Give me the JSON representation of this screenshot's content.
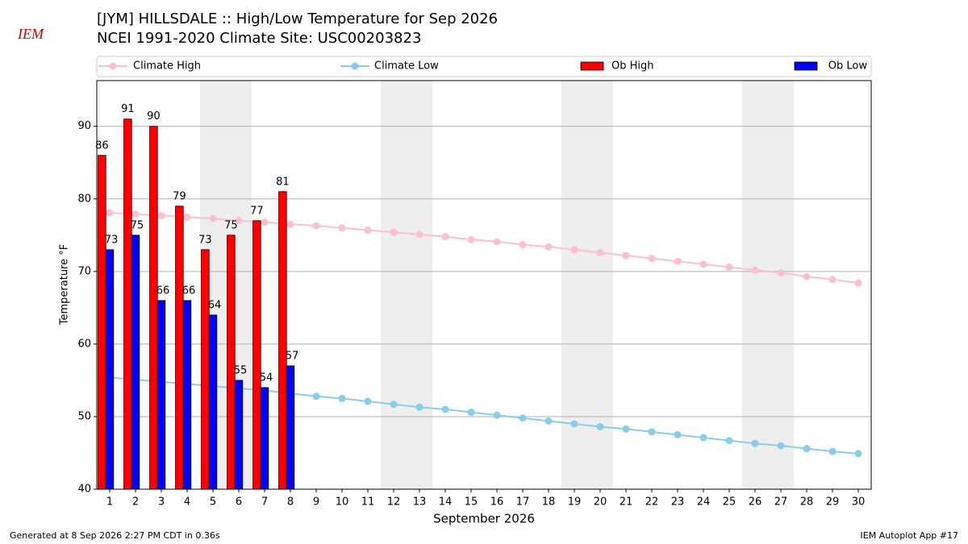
{
  "chart_data": {
    "type": "bar_line",
    "title": "[JYM] HILLSDALE :: High/Low Temperature for Sep 2026",
    "subtitle": "NCEI 1991-2020 Climate Site: USC00203823",
    "logo_text": "IEM",
    "xlabel": "September 2026",
    "ylabel": "Temperature °F",
    "footer_left": "Generated at 8 Sep 2026 2:27 PM CDT in 0.36s",
    "footer_right": "IEM Autoplot App #17",
    "x": [
      1,
      2,
      3,
      4,
      5,
      6,
      7,
      8,
      9,
      10,
      11,
      12,
      13,
      14,
      15,
      16,
      17,
      18,
      19,
      20,
      21,
      22,
      23,
      24,
      25,
      26,
      27,
      28,
      29,
      30
    ],
    "xlim": [
      0.5,
      30.5
    ],
    "xticks": [
      1,
      2,
      3,
      4,
      5,
      6,
      7,
      8,
      9,
      10,
      11,
      12,
      13,
      14,
      15,
      16,
      17,
      18,
      19,
      20,
      21,
      22,
      23,
      24,
      25,
      26,
      27,
      28,
      29,
      30
    ],
    "ylim": [
      40,
      96.3
    ],
    "yticks": [
      40,
      50,
      60,
      70,
      80,
      90
    ],
    "grid": true,
    "shaded_x": [
      [
        4.5,
        6.5
      ],
      [
        11.5,
        13.5
      ],
      [
        18.5,
        20.5
      ],
      [
        25.5,
        27.5
      ]
    ],
    "series": [
      {
        "name": "Climate High",
        "kind": "line",
        "color": "#ffc0cb",
        "values": [
          78.1,
          77.9,
          77.7,
          77.5,
          77.3,
          77.0,
          76.8,
          76.5,
          76.3,
          76.0,
          75.7,
          75.4,
          75.1,
          74.8,
          74.4,
          74.1,
          73.7,
          73.4,
          73.0,
          72.6,
          72.2,
          71.8,
          71.4,
          71.0,
          70.6,
          70.2,
          69.8,
          69.3,
          68.9,
          68.4
        ]
      },
      {
        "name": "Climate Low",
        "kind": "line",
        "color": "#87ceeb",
        "values": [
          55.4,
          55.1,
          54.8,
          54.5,
          54.2,
          53.9,
          53.6,
          53.2,
          52.8,
          52.5,
          52.1,
          51.7,
          51.3,
          51.0,
          50.6,
          50.2,
          49.8,
          49.4,
          49.0,
          48.6,
          48.3,
          47.9,
          47.5,
          47.1,
          46.7,
          46.3,
          46.0,
          45.6,
          45.2,
          44.9
        ]
      },
      {
        "name": "Ob High",
        "kind": "bar",
        "color": "#ff0000",
        "values": [
          86,
          91,
          90,
          79,
          73,
          75,
          77,
          81,
          null,
          null,
          null,
          null,
          null,
          null,
          null,
          null,
          null,
          null,
          null,
          null,
          null,
          null,
          null,
          null,
          null,
          null,
          null,
          null,
          null,
          null
        ]
      },
      {
        "name": "Ob Low",
        "kind": "bar",
        "color": "#0000ff",
        "values": [
          73,
          75,
          66,
          66,
          64,
          55,
          54,
          57,
          null,
          null,
          null,
          null,
          null,
          null,
          null,
          null,
          null,
          null,
          null,
          null,
          null,
          null,
          null,
          null,
          null,
          null,
          null,
          null,
          null,
          null
        ]
      }
    ]
  }
}
